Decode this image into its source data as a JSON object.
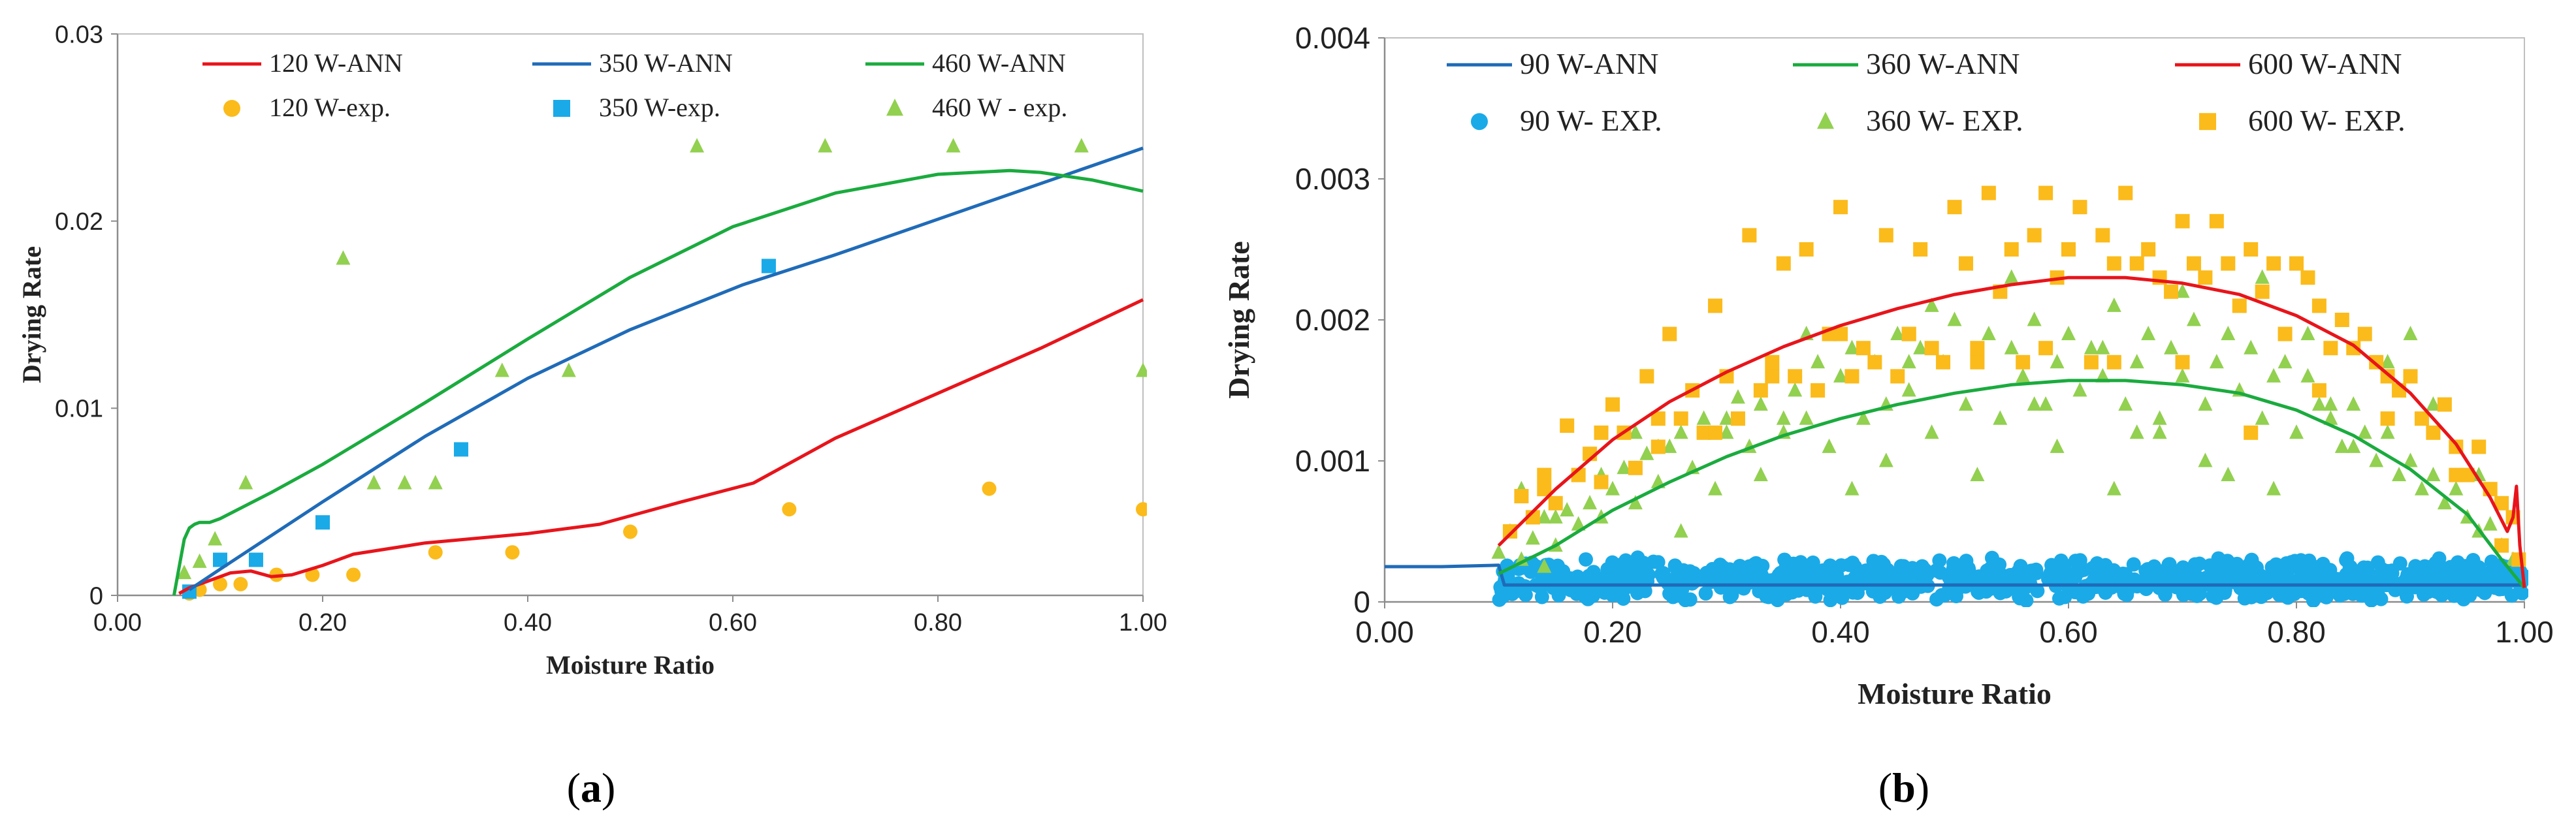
{
  "chart_data": [
    {
      "type": "line",
      "panel_label": "(a)",
      "xlabel": "Moisture Ratio",
      "ylabel": "Drying Rate",
      "xlim": [
        0,
        1
      ],
      "ylim": [
        0,
        0.03
      ],
      "x_ticks": [
        "0.00",
        "0.20",
        "0.40",
        "0.60",
        "0.80",
        "1.00"
      ],
      "y_ticks": [
        "0",
        "0.01",
        "0.02",
        "0.03"
      ],
      "grid": false,
      "legend_position": "top",
      "series": [
        {
          "name": "120 W-ANN",
          "kind": "line",
          "color": "#e8141b",
          "x": [
            0.06,
            0.07,
            0.09,
            0.11,
            0.13,
            0.15,
            0.17,
            0.2,
            0.23,
            0.3,
            0.4,
            0.47,
            0.55,
            0.62,
            0.7,
            0.8,
            0.9,
            1.0
          ],
          "y": [
            0.0001,
            0.0004,
            0.0008,
            0.0012,
            0.0013,
            0.001,
            0.0011,
            0.0016,
            0.0022,
            0.0028,
            0.0033,
            0.0038,
            0.005,
            0.006,
            0.0084,
            0.0108,
            0.0132,
            0.0158
          ]
        },
        {
          "name": "350 W-ANN",
          "kind": "line",
          "color": "#1f6bb8",
          "x": [
            0.07,
            0.1,
            0.15,
            0.2,
            0.3,
            0.4,
            0.5,
            0.61,
            0.7,
            0.8,
            0.9,
            1.0
          ],
          "y": [
            0.0003,
            0.0014,
            0.0032,
            0.005,
            0.0085,
            0.0116,
            0.0142,
            0.0166,
            0.0182,
            0.0201,
            0.022,
            0.0239
          ]
        },
        {
          "name": "460 W-ANN",
          "kind": "line",
          "color": "#1aab3e",
          "x": [
            0.055,
            0.06,
            0.065,
            0.07,
            0.075,
            0.08,
            0.09,
            0.1,
            0.15,
            0.2,
            0.3,
            0.4,
            0.5,
            0.6,
            0.7,
            0.8,
            0.87,
            0.9,
            0.95,
            1.0
          ],
          "y": [
            0.0,
            0.0015,
            0.003,
            0.0036,
            0.0038,
            0.0039,
            0.0039,
            0.0041,
            0.0055,
            0.007,
            0.0103,
            0.0137,
            0.017,
            0.0197,
            0.0215,
            0.0225,
            0.0227,
            0.0226,
            0.0222,
            0.0216
          ]
        },
        {
          "name": "120 W-exp.",
          "kind": "scatter",
          "marker": "circle",
          "color": "#fbbb1b",
          "x": [
            0.07,
            0.08,
            0.1,
            0.12,
            0.155,
            0.19,
            0.23,
            0.31,
            0.385,
            0.5,
            0.655,
            0.85,
            1.0
          ],
          "y": [
            0.0001,
            0.0003,
            0.0006,
            0.0006,
            0.0011,
            0.0011,
            0.0011,
            0.0023,
            0.0023,
            0.0034,
            0.0046,
            0.0057,
            0.0046
          ]
        },
        {
          "name": "350 W-exp.",
          "kind": "scatter",
          "marker": "square",
          "color": "#1aaae8",
          "x": [
            0.07,
            0.1,
            0.135,
            0.2,
            0.335,
            0.635
          ],
          "y": [
            0.0002,
            0.0019,
            0.0019,
            0.0039,
            0.0078,
            0.0176
          ]
        },
        {
          "name": "460 W - exp.",
          "kind": "scatter",
          "marker": "triangle",
          "color": "#92d050",
          "x": [
            0.065,
            0.08,
            0.095,
            0.125,
            0.22,
            0.25,
            0.28,
            0.31,
            0.375,
            0.44,
            0.565,
            0.69,
            0.815,
            0.94,
            1.0
          ],
          "y": [
            0.0012,
            0.0018,
            0.003,
            0.006,
            0.018,
            0.006,
            0.006,
            0.006,
            0.012,
            0.012,
            0.024,
            0.024,
            0.024,
            0.024,
            0.012
          ]
        }
      ]
    },
    {
      "type": "line",
      "panel_label": "(b)",
      "xlabel": "Moisture Ratio",
      "ylabel": "Drying Rate",
      "xlim": [
        0,
        1
      ],
      "ylim": [
        0,
        0.004
      ],
      "x_ticks": [
        "0.00",
        "0.20",
        "0.40",
        "0.60",
        "0.80",
        "1.00"
      ],
      "y_ticks": [
        "0",
        "0.001",
        "0.002",
        "0.003",
        "0.004"
      ],
      "grid": false,
      "legend_position": "top",
      "series": [
        {
          "name": "90 W-ANN",
          "kind": "line",
          "color": "#1f6bb8",
          "x": [
            0.0,
            0.05,
            0.1,
            0.105,
            0.2,
            0.3,
            0.4,
            0.5,
            0.6,
            0.7,
            0.8,
            0.9,
            0.95,
            0.99,
            1.0
          ],
          "y": [
            0.00025,
            0.00025,
            0.00026,
            0.00012,
            0.00012,
            0.00012,
            0.00012,
            0.00012,
            0.00012,
            0.00012,
            0.00012,
            0.00012,
            0.00012,
            0.00012,
            0.00012
          ]
        },
        {
          "name": "360 W-ANN",
          "kind": "line",
          "color": "#1aab3e",
          "x": [
            0.1,
            0.15,
            0.2,
            0.25,
            0.3,
            0.35,
            0.4,
            0.45,
            0.5,
            0.55,
            0.6,
            0.65,
            0.7,
            0.75,
            0.8,
            0.85,
            0.9,
            0.95,
            0.98,
            1.0
          ],
          "y": [
            0.0002,
            0.0004,
            0.00065,
            0.00085,
            0.00103,
            0.00118,
            0.0013,
            0.0014,
            0.00148,
            0.00154,
            0.00157,
            0.00157,
            0.00154,
            0.00148,
            0.00136,
            0.00118,
            0.00094,
            0.00062,
            0.0003,
            0.0001
          ]
        },
        {
          "name": "600 W-ANN",
          "kind": "line",
          "color": "#e8141b",
          "x": [
            0.1,
            0.15,
            0.2,
            0.25,
            0.3,
            0.35,
            0.4,
            0.45,
            0.5,
            0.55,
            0.6,
            0.65,
            0.7,
            0.75,
            0.8,
            0.85,
            0.9,
            0.94,
            0.97,
            0.985,
            0.99,
            0.993,
            0.996,
            1.0
          ],
          "y": [
            0.0004,
            0.0008,
            0.00115,
            0.00142,
            0.00163,
            0.00181,
            0.00196,
            0.00208,
            0.00218,
            0.00225,
            0.0023,
            0.0023,
            0.00226,
            0.00218,
            0.00203,
            0.00182,
            0.00148,
            0.00112,
            0.00074,
            0.0005,
            0.0006,
            0.00082,
            0.0004,
            0.0001
          ]
        },
        {
          "name": "90 W- EXP.",
          "kind": "scatter",
          "marker": "circle",
          "color": "#1aaae8",
          "band": [
            0.1,
            1.0,
            0.0,
            0.00032
          ],
          "count": 900
        },
        {
          "name": "360 W- EXP.",
          "kind": "scatter",
          "marker": "triangle",
          "color": "#92d050",
          "x": [
            0.1,
            0.11,
            0.12,
            0.13,
            0.14,
            0.15,
            0.16,
            0.17,
            0.18,
            0.19,
            0.2,
            0.21,
            0.22,
            0.23,
            0.24,
            0.25,
            0.26,
            0.27,
            0.28,
            0.29,
            0.3,
            0.31,
            0.32,
            0.33,
            0.34,
            0.35,
            0.36,
            0.37,
            0.38,
            0.39,
            0.4,
            0.41,
            0.42,
            0.43,
            0.44,
            0.45,
            0.46,
            0.47,
            0.48,
            0.49,
            0.5,
            0.51,
            0.52,
            0.53,
            0.54,
            0.55,
            0.56,
            0.57,
            0.58,
            0.59,
            0.6,
            0.61,
            0.62,
            0.63,
            0.64,
            0.65,
            0.66,
            0.67,
            0.68,
            0.69,
            0.7,
            0.71,
            0.72,
            0.73,
            0.74,
            0.75,
            0.76,
            0.77,
            0.78,
            0.79,
            0.8,
            0.81,
            0.82,
            0.83,
            0.84,
            0.85,
            0.86,
            0.87,
            0.88,
            0.89,
            0.9,
            0.91,
            0.92,
            0.93,
            0.94,
            0.95,
            0.96,
            0.97,
            0.98,
            0.99,
            0.12,
            0.15,
            0.19,
            0.22,
            0.26,
            0.3,
            0.33,
            0.37,
            0.41,
            0.44,
            0.48,
            0.52,
            0.55,
            0.59,
            0.63,
            0.66,
            0.7,
            0.74,
            0.77,
            0.81,
            0.85,
            0.88,
            0.92,
            0.96,
            0.14,
            0.24,
            0.35,
            0.46,
            0.57,
            0.64,
            0.68,
            0.72,
            0.78,
            0.83,
            0.9,
            0.95
          ],
          "y": [
            0.00035,
            0.0005,
            0.0003,
            0.00045,
            0.0006,
            0.0004,
            0.00065,
            0.00055,
            0.0007,
            0.0006,
            0.0008,
            0.00095,
            0.0007,
            0.00105,
            0.00085,
            0.0011,
            0.0012,
            0.00095,
            0.0013,
            0.0008,
            0.0012,
            0.00145,
            0.0011,
            0.0014,
            0.0016,
            0.0012,
            0.0015,
            0.0013,
            0.0017,
            0.0011,
            0.0016,
            0.0018,
            0.0013,
            0.0017,
            0.0014,
            0.0019,
            0.0015,
            0.0018,
            0.0012,
            0.0017,
            0.002,
            0.0014,
            0.0017,
            0.0019,
            0.0013,
            0.0018,
            0.0016,
            0.002,
            0.0014,
            0.0017,
            0.0019,
            0.0015,
            0.0018,
            0.0016,
            0.0021,
            0.0014,
            0.0017,
            0.0019,
            0.0013,
            0.0018,
            0.0016,
            0.002,
            0.0014,
            0.0017,
            0.0019,
            0.0015,
            0.0018,
            0.0013,
            0.0016,
            0.0017,
            0.0012,
            0.0016,
            0.0014,
            0.0013,
            0.0011,
            0.0014,
            0.0012,
            0.001,
            0.0012,
            0.0009,
            0.001,
            0.0008,
            0.0009,
            0.0007,
            0.0008,
            0.0006,
            0.0005,
            0.00055,
            0.0004,
            0.0003,
            0.0008,
            0.0006,
            0.0009,
            0.0012,
            0.0005,
            0.0013,
            0.0009,
            0.0019,
            0.0008,
            0.001,
            0.0021,
            0.0009,
            0.0023,
            0.0011,
            0.0018,
            0.0012,
            0.0022,
            0.0009,
            0.0023,
            0.0019,
            0.0011,
            0.0017,
            0.0014,
            0.0009,
            0.00025,
            0.0011,
            0.0013,
            0.0017,
            0.0014,
            0.0008,
            0.0012,
            0.001,
            0.0008,
            0.0014,
            0.0019,
            0.0006
          ]
        },
        {
          "name": "600 W- EXP.",
          "kind": "scatter",
          "marker": "square",
          "color": "#fbbb1b",
          "x": [
            0.11,
            0.12,
            0.13,
            0.14,
            0.15,
            0.16,
            0.17,
            0.18,
            0.19,
            0.2,
            0.21,
            0.22,
            0.23,
            0.24,
            0.25,
            0.26,
            0.27,
            0.28,
            0.29,
            0.3,
            0.31,
            0.32,
            0.33,
            0.34,
            0.35,
            0.36,
            0.37,
            0.38,
            0.39,
            0.4,
            0.41,
            0.42,
            0.43,
            0.44,
            0.45,
            0.46,
            0.47,
            0.48,
            0.49,
            0.5,
            0.51,
            0.52,
            0.53,
            0.54,
            0.55,
            0.56,
            0.57,
            0.58,
            0.59,
            0.6,
            0.61,
            0.62,
            0.63,
            0.64,
            0.65,
            0.66,
            0.67,
            0.68,
            0.69,
            0.7,
            0.71,
            0.72,
            0.73,
            0.74,
            0.75,
            0.76,
            0.77,
            0.78,
            0.79,
            0.8,
            0.81,
            0.82,
            0.83,
            0.84,
            0.85,
            0.86,
            0.87,
            0.88,
            0.89,
            0.9,
            0.91,
            0.92,
            0.93,
            0.94,
            0.95,
            0.96,
            0.97,
            0.98,
            0.99,
            0.995,
            0.14,
            0.19,
            0.24,
            0.29,
            0.34,
            0.4,
            0.46,
            0.52,
            0.58,
            0.64,
            0.7,
            0.76,
            0.82,
            0.88,
            0.94,
            0.98
          ],
          "y": [
            0.0005,
            0.00075,
            0.0006,
            0.0009,
            0.0007,
            0.00125,
            0.0009,
            0.00105,
            0.00085,
            0.0014,
            0.0012,
            0.00095,
            0.0016,
            0.0011,
            0.0019,
            0.0013,
            0.0015,
            0.0012,
            0.0021,
            0.0016,
            0.0013,
            0.0026,
            0.0015,
            0.0017,
            0.0024,
            0.0016,
            0.0025,
            0.0015,
            0.0019,
            0.0028,
            0.0016,
            0.0018,
            0.0017,
            0.0026,
            0.0016,
            0.0019,
            0.0025,
            0.0018,
            0.0017,
            0.0028,
            0.0024,
            0.0017,
            0.0029,
            0.0022,
            0.0025,
            0.0017,
            0.0026,
            0.0029,
            0.0023,
            0.0025,
            0.0028,
            0.0017,
            0.0026,
            0.0024,
            0.0029,
            0.0024,
            0.0025,
            0.0023,
            0.0022,
            0.0027,
            0.0024,
            0.0023,
            0.0027,
            0.0024,
            0.0021,
            0.0025,
            0.0022,
            0.0024,
            0.0019,
            0.0024,
            0.0023,
            0.0021,
            0.0018,
            0.002,
            0.0018,
            0.0019,
            0.0017,
            0.0016,
            0.0015,
            0.0016,
            0.0013,
            0.0012,
            0.0014,
            0.0011,
            0.0009,
            0.0011,
            0.0008,
            0.0007,
            0.0006,
            0.0003,
            0.0008,
            0.0012,
            0.0013,
            0.0012,
            0.0016,
            0.0019,
            0.0019,
            0.0018,
            0.0018,
            0.0017,
            0.0017,
            0.0012,
            0.0015,
            0.0013,
            0.0009,
            0.0004
          ]
        }
      ]
    }
  ]
}
